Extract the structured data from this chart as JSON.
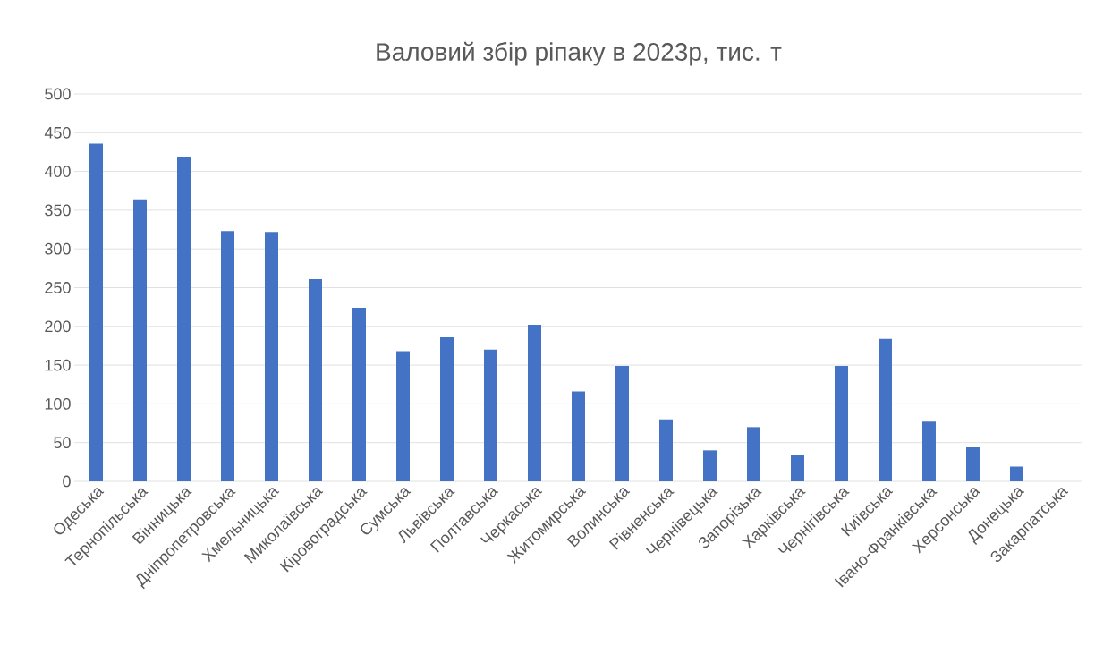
{
  "chart_data": {
    "type": "bar",
    "title": "Валовий збір ріпаку в 2023р, тис. т",
    "categories": [
      "Одеська",
      "Тернопільська",
      "Вінницька",
      "Дніпропетровська",
      "Хмельницька",
      "Миколаївська",
      "Кіровоградська",
      "Сумська",
      "Львівська",
      "Полтавська",
      "Черкаська",
      "Житомирська",
      "Волинська",
      "Рівненська",
      "Чернівецька",
      "Запорізька",
      "Харківська",
      "Чернігівська",
      "Київська",
      "Івано-Франківська",
      "Херсонська",
      "Донецька",
      "Закарпатська"
    ],
    "values": [
      436,
      364,
      419,
      323,
      322,
      261,
      224,
      168,
      186,
      170,
      202,
      116,
      149,
      80,
      40,
      70,
      34,
      149,
      184,
      77,
      44,
      19,
      0
    ],
    "color": "#4472c4",
    "ylim": [
      0,
      500
    ],
    "yticks": [
      0,
      50,
      100,
      150,
      200,
      250,
      300,
      350,
      400,
      450,
      500
    ],
    "grid": "y"
  }
}
